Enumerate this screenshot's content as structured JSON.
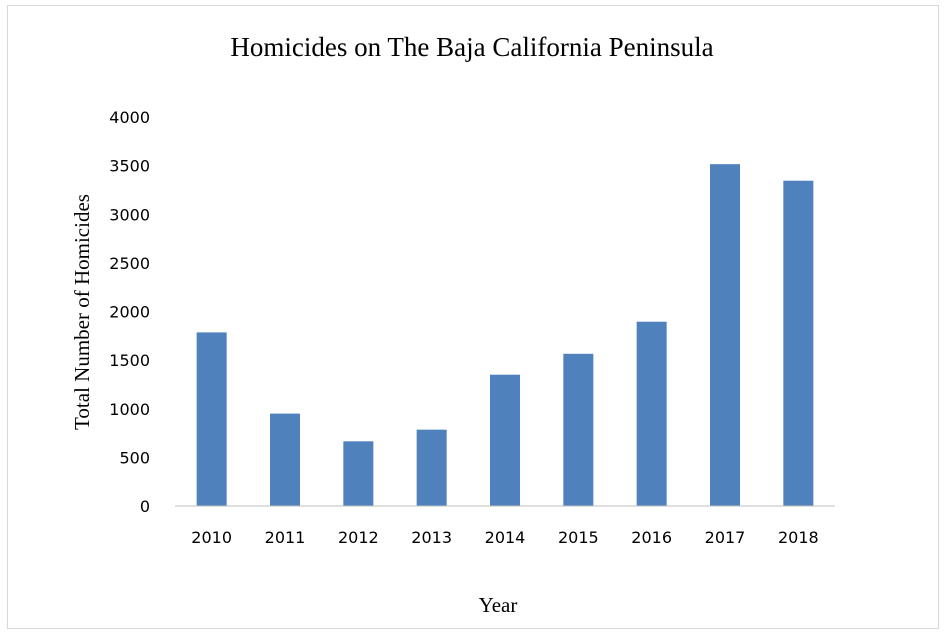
{
  "chart_data": {
    "type": "bar",
    "title": "Homicides on The Baja California Peninsula",
    "xlabel": "Year",
    "ylabel": "Total Number of Homicides",
    "categories": [
      "2010",
      "2011",
      "2012",
      "2013",
      "2014",
      "2015",
      "2016",
      "2017",
      "2018"
    ],
    "values": [
      1785,
      950,
      665,
      785,
      1350,
      1565,
      1895,
      3515,
      3345
    ],
    "ylim": [
      0,
      4000
    ],
    "yticks": [
      "0",
      "500",
      "1000",
      "1500",
      "2000",
      "2500",
      "3000",
      "3500",
      "4000"
    ],
    "grid": false,
    "legend": "none",
    "bar_color": "#4f81bd"
  }
}
